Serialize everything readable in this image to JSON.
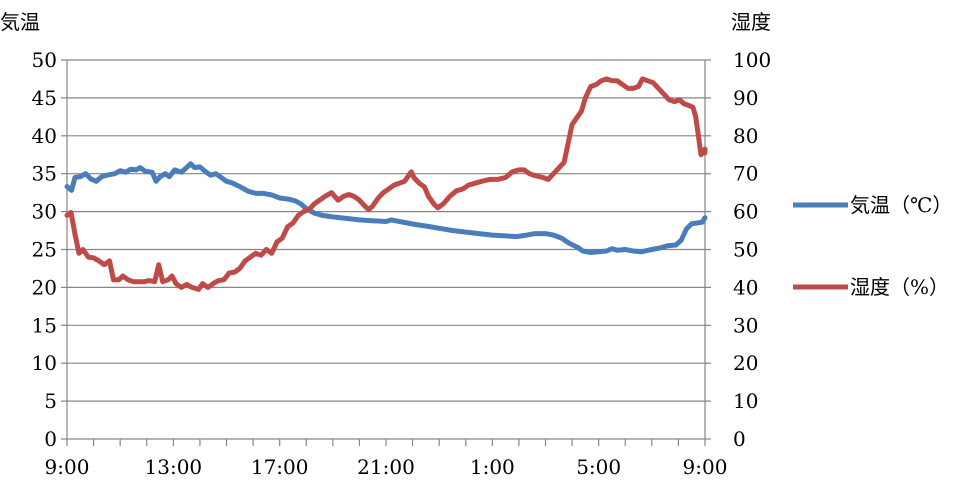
{
  "chart_data": {
    "type": "line",
    "y_left_title": "気温",
    "y_right_title": "湿度",
    "y_left_range": [
      0,
      50
    ],
    "y_right_range": [
      0,
      100
    ],
    "y_left_ticks": [
      "0",
      "5",
      "10",
      "15",
      "20",
      "25",
      "30",
      "35",
      "40",
      "45",
      "50"
    ],
    "y_right_ticks": [
      "0",
      "10",
      "20",
      "30",
      "40",
      "50",
      "60",
      "70",
      "80",
      "90",
      "100"
    ],
    "x_ticks": [
      "9:00",
      "13:00",
      "17:00",
      "21:00",
      "1:00",
      "5:00",
      "9:00"
    ],
    "x_range_hours": [
      0,
      24
    ],
    "grid": "horizontal",
    "legend_position": "right",
    "series": [
      {
        "name": "気温（℃）",
        "axis": "left",
        "color": "#4a7ebb",
        "points": [
          [
            0.0,
            33.3
          ],
          [
            0.17,
            32.8
          ],
          [
            0.3,
            34.5
          ],
          [
            0.5,
            34.6
          ],
          [
            0.7,
            35.0
          ],
          [
            0.9,
            34.3
          ],
          [
            1.1,
            34.0
          ],
          [
            1.3,
            34.6
          ],
          [
            1.5,
            34.8
          ],
          [
            1.8,
            35.0
          ],
          [
            2.0,
            35.4
          ],
          [
            2.2,
            35.2
          ],
          [
            2.4,
            35.6
          ],
          [
            2.6,
            35.5
          ],
          [
            2.75,
            35.8
          ],
          [
            2.95,
            35.3
          ],
          [
            3.2,
            35.2
          ],
          [
            3.35,
            34.0
          ],
          [
            3.5,
            34.6
          ],
          [
            3.7,
            35.0
          ],
          [
            3.85,
            34.6
          ],
          [
            4.05,
            35.5
          ],
          [
            4.3,
            35.2
          ],
          [
            4.5,
            35.8
          ],
          [
            4.65,
            36.3
          ],
          [
            4.8,
            35.8
          ],
          [
            5.0,
            35.9
          ],
          [
            5.2,
            35.3
          ],
          [
            5.4,
            34.8
          ],
          [
            5.6,
            35.0
          ],
          [
            5.8,
            34.5
          ],
          [
            6.0,
            34.0
          ],
          [
            6.2,
            33.8
          ],
          [
            6.5,
            33.3
          ],
          [
            6.8,
            32.7
          ],
          [
            7.1,
            32.4
          ],
          [
            7.4,
            32.4
          ],
          [
            7.7,
            32.2
          ],
          [
            8.0,
            31.8
          ],
          [
            8.2,
            31.7
          ],
          [
            8.4,
            31.6
          ],
          [
            8.6,
            31.4
          ],
          [
            8.8,
            31.0
          ],
          [
            9.0,
            30.4
          ],
          [
            9.3,
            29.8
          ],
          [
            9.6,
            29.5
          ],
          [
            10.0,
            29.3
          ],
          [
            10.5,
            29.1
          ],
          [
            11.0,
            28.9
          ],
          [
            11.5,
            28.8
          ],
          [
            12.0,
            28.7
          ],
          [
            12.2,
            28.9
          ],
          [
            12.5,
            28.7
          ],
          [
            12.8,
            28.5
          ],
          [
            13.1,
            28.3
          ],
          [
            13.5,
            28.1
          ],
          [
            14.0,
            27.8
          ],
          [
            14.5,
            27.5
          ],
          [
            15.0,
            27.3
          ],
          [
            15.5,
            27.1
          ],
          [
            16.0,
            26.9
          ],
          [
            16.5,
            26.8
          ],
          [
            16.9,
            26.7
          ],
          [
            17.3,
            26.9
          ],
          [
            17.6,
            27.1
          ],
          [
            18.0,
            27.1
          ],
          [
            18.3,
            26.9
          ],
          [
            18.6,
            26.5
          ],
          [
            18.9,
            25.8
          ],
          [
            19.2,
            25.3
          ],
          [
            19.4,
            24.8
          ],
          [
            19.7,
            24.6
          ],
          [
            20.0,
            24.7
          ],
          [
            20.3,
            24.8
          ],
          [
            20.5,
            25.1
          ],
          [
            20.7,
            24.9
          ],
          [
            21.0,
            25.0
          ],
          [
            21.3,
            24.8
          ],
          [
            21.6,
            24.7
          ],
          [
            22.0,
            25.0
          ],
          [
            22.3,
            25.2
          ],
          [
            22.6,
            25.5
          ],
          [
            22.9,
            25.6
          ],
          [
            23.1,
            26.2
          ],
          [
            23.3,
            27.7
          ],
          [
            23.5,
            28.4
          ],
          [
            23.7,
            28.5
          ],
          [
            23.9,
            28.6
          ],
          [
            24.0,
            29.2
          ]
        ]
      },
      {
        "name": "湿度（%）",
        "axis": "right",
        "color": "#be4b48",
        "points": [
          [
            0.0,
            59.0
          ],
          [
            0.15,
            59.8
          ],
          [
            0.3,
            54.0
          ],
          [
            0.45,
            49.0
          ],
          [
            0.6,
            50.0
          ],
          [
            0.8,
            48.0
          ],
          [
            1.0,
            47.8
          ],
          [
            1.2,
            47.0
          ],
          [
            1.4,
            46.0
          ],
          [
            1.6,
            47.0
          ],
          [
            1.75,
            42.0
          ],
          [
            1.95,
            42.0
          ],
          [
            2.1,
            43.0
          ],
          [
            2.3,
            42.0
          ],
          [
            2.5,
            41.5
          ],
          [
            2.7,
            41.5
          ],
          [
            2.9,
            41.5
          ],
          [
            3.1,
            41.8
          ],
          [
            3.3,
            41.5
          ],
          [
            3.45,
            46.0
          ],
          [
            3.6,
            41.5
          ],
          [
            3.8,
            42.0
          ],
          [
            3.95,
            43.0
          ],
          [
            4.1,
            41.0
          ],
          [
            4.3,
            40.0
          ],
          [
            4.5,
            40.8
          ],
          [
            4.7,
            40.0
          ],
          [
            4.95,
            39.5
          ],
          [
            5.1,
            41.0
          ],
          [
            5.3,
            40.0
          ],
          [
            5.5,
            41.0
          ],
          [
            5.7,
            41.8
          ],
          [
            5.9,
            42.0
          ],
          [
            6.1,
            43.8
          ],
          [
            6.3,
            44.0
          ],
          [
            6.5,
            45.0
          ],
          [
            6.7,
            47.0
          ],
          [
            6.9,
            48.0
          ],
          [
            7.1,
            49.0
          ],
          [
            7.3,
            48.5
          ],
          [
            7.5,
            50.0
          ],
          [
            7.7,
            49.0
          ],
          [
            7.9,
            52.0
          ],
          [
            8.1,
            53.0
          ],
          [
            8.3,
            56.0
          ],
          [
            8.5,
            57.0
          ],
          [
            8.7,
            59.0
          ],
          [
            8.9,
            60.0
          ],
          [
            9.1,
            60.5
          ],
          [
            9.3,
            62.0
          ],
          [
            9.5,
            63.0
          ],
          [
            9.7,
            64.0
          ],
          [
            9.95,
            65.0
          ],
          [
            10.2,
            63.0
          ],
          [
            10.4,
            64.0
          ],
          [
            10.6,
            64.5
          ],
          [
            10.8,
            64.0
          ],
          [
            11.0,
            63.0
          ],
          [
            11.2,
            61.5
          ],
          [
            11.35,
            60.5
          ],
          [
            11.5,
            61.5
          ],
          [
            11.7,
            63.5
          ],
          [
            11.9,
            65.0
          ],
          [
            12.1,
            66.0
          ],
          [
            12.3,
            67.0
          ],
          [
            12.5,
            67.5
          ],
          [
            12.7,
            68.0
          ],
          [
            12.85,
            69.5
          ],
          [
            12.95,
            70.5
          ],
          [
            13.05,
            69.0
          ],
          [
            13.25,
            67.5
          ],
          [
            13.45,
            66.5
          ],
          [
            13.6,
            64.0
          ],
          [
            13.8,
            62.0
          ],
          [
            13.95,
            61.0
          ],
          [
            14.15,
            62.0
          ],
          [
            14.4,
            64.0
          ],
          [
            14.65,
            65.5
          ],
          [
            14.9,
            66.0
          ],
          [
            15.1,
            67.0
          ],
          [
            15.35,
            67.5
          ],
          [
            15.6,
            68.0
          ],
          [
            15.9,
            68.5
          ],
          [
            16.2,
            68.5
          ],
          [
            16.5,
            69.0
          ],
          [
            16.75,
            70.5
          ],
          [
            17.0,
            71.0
          ],
          [
            17.2,
            71.0
          ],
          [
            17.4,
            70.0
          ],
          [
            17.6,
            69.5
          ],
          [
            17.9,
            69.0
          ],
          [
            18.1,
            68.5
          ],
          [
            18.3,
            70.0
          ],
          [
            18.5,
            71.5
          ],
          [
            18.7,
            73.0
          ],
          [
            18.85,
            78.0
          ],
          [
            19.0,
            83.0
          ],
          [
            19.2,
            85.0
          ],
          [
            19.35,
            86.5
          ],
          [
            19.5,
            90.0
          ],
          [
            19.7,
            93.0
          ],
          [
            19.9,
            93.5
          ],
          [
            20.1,
            94.5
          ],
          [
            20.3,
            95.0
          ],
          [
            20.5,
            94.5
          ],
          [
            20.7,
            94.5
          ],
          [
            20.9,
            93.5
          ],
          [
            21.1,
            92.5
          ],
          [
            21.3,
            92.5
          ],
          [
            21.5,
            93.0
          ],
          [
            21.65,
            95.0
          ],
          [
            21.85,
            94.5
          ],
          [
            22.05,
            94.0
          ],
          [
            22.25,
            92.5
          ],
          [
            22.45,
            91.0
          ],
          [
            22.65,
            89.5
          ],
          [
            22.85,
            89.0
          ],
          [
            23.05,
            89.5
          ],
          [
            23.2,
            88.5
          ],
          [
            23.4,
            88.0
          ],
          [
            23.55,
            87.5
          ],
          [
            23.65,
            85.0
          ],
          [
            23.75,
            80.0
          ],
          [
            23.85,
            75.0
          ],
          [
            23.95,
            76.0
          ],
          [
            24.1,
            76.0
          ],
          [
            24.25,
            76.5
          ],
          [
            24.4,
            75.5
          ]
        ]
      }
    ]
  }
}
